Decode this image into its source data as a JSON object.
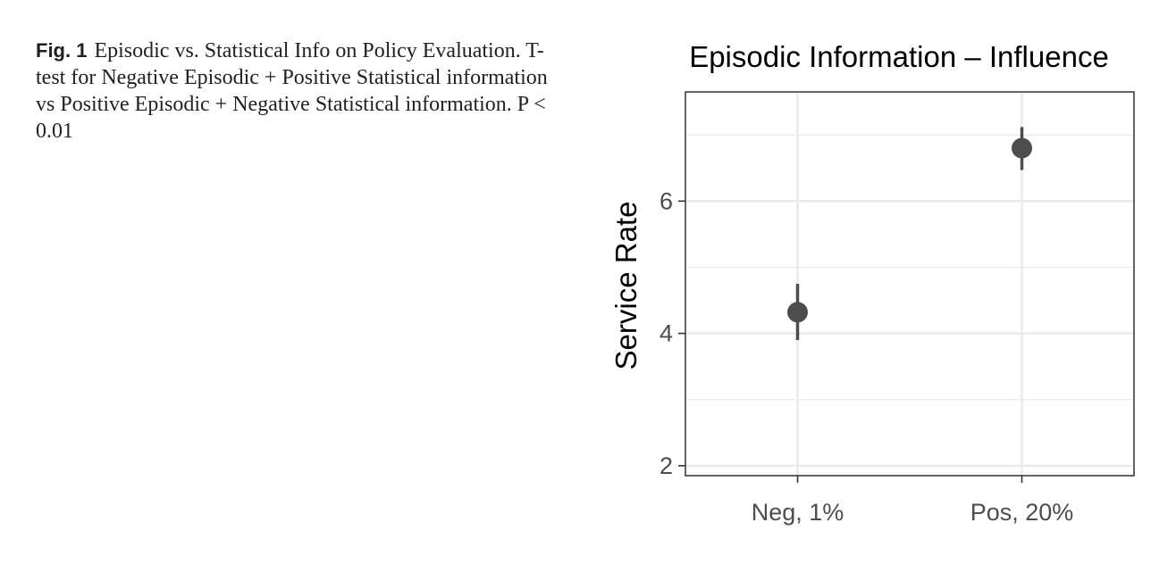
{
  "caption": {
    "label": "Fig. 1",
    "text": "Episodic vs. Statistical Info on Policy Evaluation. T-test for Negative Episodic + Positive Statistical information vs Positive Episodic + Negative Statistical information. P < 0.01"
  },
  "chart_data": {
    "type": "scatter",
    "title": "Episodic Information – Influence",
    "xlabel": "",
    "ylabel": "Service Rate",
    "categories": [
      "Neg, 1%",
      "Pos, 20%"
    ],
    "values": [
      4.32,
      6.8
    ],
    "error_low": [
      3.9,
      6.47
    ],
    "error_high": [
      4.75,
      7.12
    ],
    "ylim": [
      1.85,
      7.65
    ],
    "yticks": [
      2,
      4,
      6
    ],
    "ytick_labels": [
      "2",
      "4",
      "6"
    ],
    "grid": true,
    "legend": "none",
    "colors": {
      "point": "#4d4d4d",
      "grid": "#ebebeb",
      "axis": "#333333",
      "text": "#4d4d4d",
      "title": "#000000"
    }
  }
}
